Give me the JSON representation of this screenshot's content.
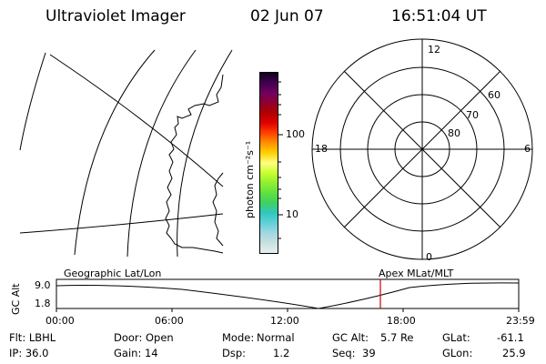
{
  "header": {
    "title": "Ultraviolet Imager",
    "date": "02 Jun 07",
    "time": "16:51:04 UT"
  },
  "colorbar": {
    "label": "photon cm⁻²s⁻¹",
    "tick_100": "100",
    "tick_10": "10",
    "colors": [
      "#e6f0f0",
      "#c8e0e0",
      "#a0d8e0",
      "#60d0d8",
      "#30c8c0",
      "#40d060",
      "#60e040",
      "#90f030",
      "#c8ff30",
      "#ffff80",
      "#ffd000",
      "#ff9000",
      "#ff4000",
      "#e00000",
      "#b00000",
      "#900030",
      "#700060",
      "#400050",
      "#100020"
    ]
  },
  "polar": {
    "labels": {
      "mlt_12": "12",
      "mlt_18": "18",
      "mlt_6": "6",
      "mlt_0": "0",
      "lat_60": "60",
      "lat_70": "70",
      "lat_80": "80"
    }
  },
  "timeline": {
    "left_label": "Geographic Lat/Lon",
    "right_label": "Apex MLat/MLT",
    "ylabel": "GC Alt",
    "ytick_top": "9.0",
    "ytick_bottom": "1.8",
    "xticks": [
      "00:00",
      "06:00",
      "12:00",
      "18:00",
      "23:59"
    ],
    "marker_color": "#cc0000"
  },
  "footer": {
    "flt": "Flt: LBHL",
    "ip": "IP: 36.0",
    "door": "Door: Open",
    "gain": "Gain: 14",
    "mode_label": "Mode:",
    "mode_value": "Normal",
    "dsp_label": "Dsp:",
    "dsp_value": "1.2",
    "gcalt_label": "GC Alt:",
    "gcalt_value": "5.7 Re",
    "seq_label": "Seq:",
    "seq_value": "39",
    "glat_label": "GLat:",
    "glat_value": "-61.1",
    "glon_label": "GLon:",
    "glon_value": "25.9"
  }
}
